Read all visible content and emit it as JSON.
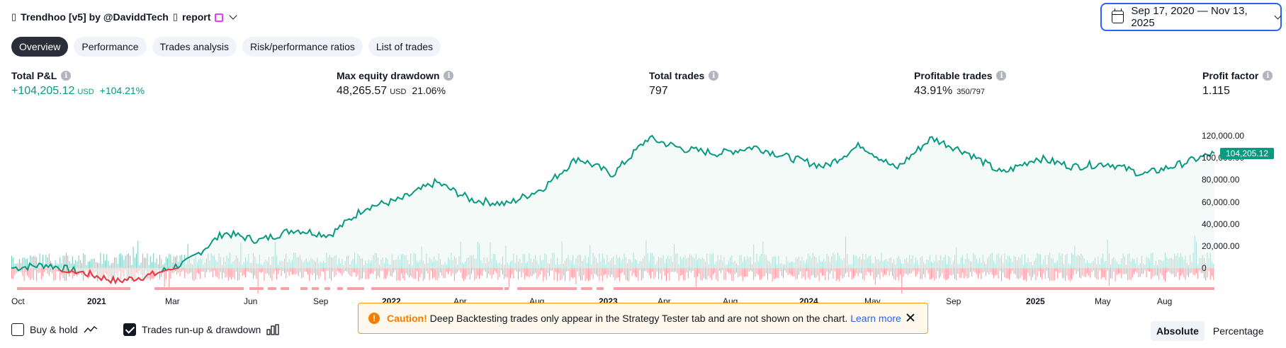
{
  "header": {
    "title": "Trendhoo [v5] by @DaviddTech",
    "report_label": "report",
    "glyph": "▯"
  },
  "date_range": {
    "label": "Sep 17, 2020 — Nov 13, 2025"
  },
  "tabs": [
    {
      "label": "Overview",
      "active": true
    },
    {
      "label": "Performance",
      "active": false
    },
    {
      "label": "Trades analysis",
      "active": false
    },
    {
      "label": "Risk/performance ratios",
      "active": false
    },
    {
      "label": "List of trades",
      "active": false
    }
  ],
  "metrics": {
    "total_pnl": {
      "label": "Total P&L",
      "value": "+104,205.12",
      "unit": "USD",
      "percent": "+104.21%"
    },
    "max_drawdown": {
      "label": "Max equity drawdown",
      "value": "48,265.57",
      "unit": "USD",
      "percent": "21.06%"
    },
    "total_trades": {
      "label": "Total trades",
      "value": "797"
    },
    "profitable_trades": {
      "label": "Profitable trades",
      "value": "43.91%",
      "ratio": "350/797"
    },
    "profit_factor": {
      "label": "Profit factor",
      "value": "1.115"
    }
  },
  "chart_data": {
    "type": "line",
    "y_ticks": [
      "120,000.00",
      "100,000.00",
      "80,000.00",
      "60,000.00",
      "40,000.00",
      "20,000.00",
      "0"
    ],
    "ylim": [
      0,
      120000
    ],
    "x_ticks": [
      {
        "label": "Oct",
        "bold": false
      },
      {
        "label": "2021",
        "bold": true
      },
      {
        "label": "Mar",
        "bold": false
      },
      {
        "label": "Jun",
        "bold": false
      },
      {
        "label": "Sep",
        "bold": false
      },
      {
        "label": "2022",
        "bold": true
      },
      {
        "label": "Apr",
        "bold": false
      },
      {
        "label": "Aug",
        "bold": false
      },
      {
        "label": "2023",
        "bold": true
      },
      {
        "label": "Apr",
        "bold": false
      },
      {
        "label": "Aug",
        "bold": false
      },
      {
        "label": "2024",
        "bold": true
      },
      {
        "label": "May",
        "bold": false
      },
      {
        "label": "Sep",
        "bold": false
      },
      {
        "label": "2025",
        "bold": true
      },
      {
        "label": "May",
        "bold": false
      },
      {
        "label": "Aug",
        "bold": false
      }
    ],
    "last_value": "104,205.12",
    "equity_keypoints": [
      0,
      3000,
      -4000,
      -12000,
      -6000,
      6000,
      32000,
      25000,
      35000,
      30000,
      55000,
      62000,
      78000,
      62000,
      58000,
      72000,
      100000,
      85000,
      118000,
      108000,
      104000,
      110000,
      100000,
      92000,
      112000,
      90000,
      118000,
      105000,
      86000,
      100000,
      92000,
      95000,
      85000,
      94000,
      104205
    ],
    "series_colors": {
      "equity": "#089981",
      "equity_negative": "#f23645",
      "runup": "#089981",
      "drawdown": "#f23645"
    }
  },
  "legend": {
    "buy_hold": {
      "label": "Buy & hold",
      "checked": false
    },
    "runup_drawdown": {
      "label": "Trades run-up & drawdown",
      "checked": true
    }
  },
  "caution": {
    "lead": "Caution!",
    "text": "Deep Backtesting trades only appear in the Strategy Tester tab and are not shown on the chart.",
    "link": "Learn more"
  },
  "view_toggle": {
    "absolute": "Absolute",
    "percentage": "Percentage"
  }
}
